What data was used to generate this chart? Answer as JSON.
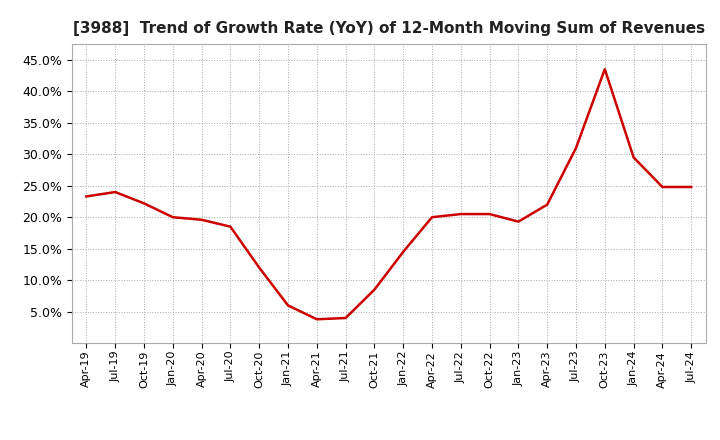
{
  "title": "[3988]  Trend of Growth Rate (YoY) of 12-Month Moving Sum of Revenues",
  "title_fontsize": 11,
  "line_color": "#CC0000",
  "line_width": 1.8,
  "background_color": "#FFFFFF",
  "plot_bg_color": "#FFFFFF",
  "grid_color": "#AAAAAA",
  "ylim": [
    0.0,
    0.475
  ],
  "yticks": [
    0.05,
    0.1,
    0.15,
    0.2,
    0.25,
    0.3,
    0.35,
    0.4,
    0.45
  ],
  "values": [
    0.233,
    0.24,
    0.222,
    0.2,
    0.196,
    0.185,
    0.12,
    0.06,
    0.038,
    0.04,
    0.085,
    0.145,
    0.2,
    0.205,
    0.205,
    0.193,
    0.22,
    0.31,
    0.435,
    0.295,
    0.248,
    0.248
  ],
  "xtick_labels": [
    "Apr-19",
    "Jul-19",
    "Oct-19",
    "Jan-20",
    "Apr-20",
    "Jul-20",
    "Oct-20",
    "Jan-21",
    "Apr-21",
    "Jul-21",
    "Oct-21",
    "Jan-22",
    "Apr-22",
    "Jul-22",
    "Oct-22",
    "Jan-23",
    "Apr-23",
    "Jul-23",
    "Oct-23",
    "Jan-24",
    "Apr-24",
    "Jul-24"
  ],
  "ytick_fontsize": 9,
  "xtick_fontsize": 8
}
